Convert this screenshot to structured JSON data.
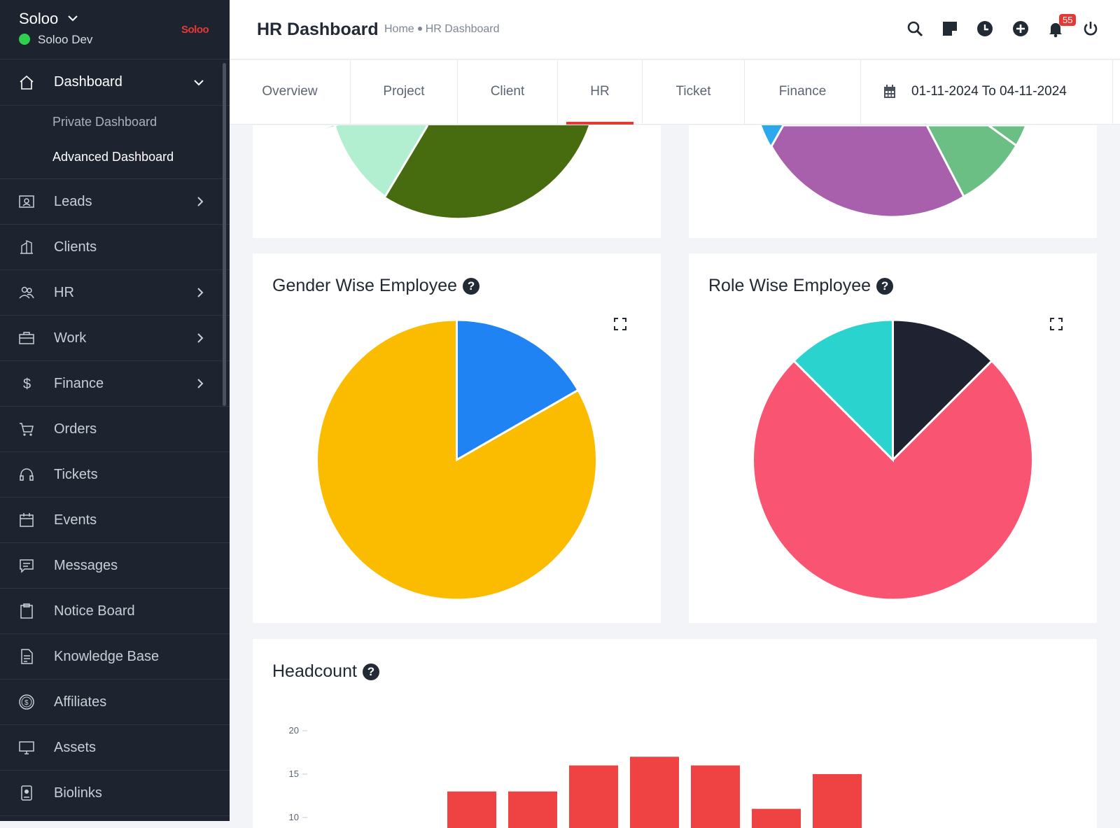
{
  "brand": {
    "name": "Soloo",
    "user": "Soloo Dev",
    "logo": "Soloo"
  },
  "sidebar": {
    "dashboard": {
      "label": "Dashboard",
      "icon": "home-icon",
      "sub": [
        "Private Dashboard",
        "Advanced Dashboard"
      ]
    },
    "items": [
      {
        "label": "Leads",
        "icon": "contact-card-icon",
        "chevron": true
      },
      {
        "label": "Clients",
        "icon": "building-icon",
        "chevron": false
      },
      {
        "label": "HR",
        "icon": "people-icon",
        "chevron": true
      },
      {
        "label": "Work",
        "icon": "briefcase-icon",
        "chevron": true
      },
      {
        "label": "Finance",
        "icon": "dollar-icon",
        "chevron": true
      },
      {
        "label": "Orders",
        "icon": "cart-icon",
        "chevron": false
      },
      {
        "label": "Tickets",
        "icon": "headset-icon",
        "chevron": false
      },
      {
        "label": "Events",
        "icon": "calendar-icon",
        "chevron": false
      },
      {
        "label": "Messages",
        "icon": "message-icon",
        "chevron": false
      },
      {
        "label": "Notice Board",
        "icon": "clipboard-icon",
        "chevron": false
      },
      {
        "label": "Knowledge Base",
        "icon": "document-icon",
        "chevron": false
      },
      {
        "label": "Affiliates",
        "icon": "coin-icon",
        "chevron": false
      },
      {
        "label": "Assets",
        "icon": "monitor-icon",
        "chevron": false
      },
      {
        "label": "Biolinks",
        "icon": "id-badge-icon",
        "chevron": false
      }
    ]
  },
  "header": {
    "title": "HR Dashboard",
    "breadcrumb": {
      "home": "Home",
      "current": "HR Dashboard"
    },
    "notification_count": "55"
  },
  "tabs": [
    "Overview",
    "Project",
    "Client",
    "HR",
    "Ticket",
    "Finance"
  ],
  "active_tab": "HR",
  "date_range": "01-11-2024 To 04-11-2024",
  "cards": {
    "gender": {
      "title": "Gender Wise Employee",
      "help": "?"
    },
    "role": {
      "title": "Role Wise Employee",
      "help": "?"
    },
    "headcount": {
      "title": "Headcount",
      "help": "?"
    }
  },
  "chart_data": [
    {
      "type": "pie",
      "title": "Gender Wise Employee",
      "slices": [
        {
          "value": 16.7,
          "color": "#2083f3"
        },
        {
          "value": 83.3,
          "color": "#fbbc00"
        }
      ]
    },
    {
      "type": "pie",
      "title": "Role Wise Employee",
      "slices": [
        {
          "value": 12.5,
          "color": "#1f2230"
        },
        {
          "value": 75,
          "color": "#f95572"
        },
        {
          "value": 12.5,
          "color": "#2bd3cf"
        }
      ]
    },
    {
      "type": "bar",
      "title": "Headcount",
      "yticks": [
        10,
        15,
        20
      ],
      "values": [
        13,
        13,
        16,
        17,
        16,
        11,
        15
      ],
      "color": "#ef4242"
    }
  ],
  "colors": {
    "accent": "#e53935",
    "sidebar_bg": "#1d2430",
    "online": "#2fd04e"
  }
}
